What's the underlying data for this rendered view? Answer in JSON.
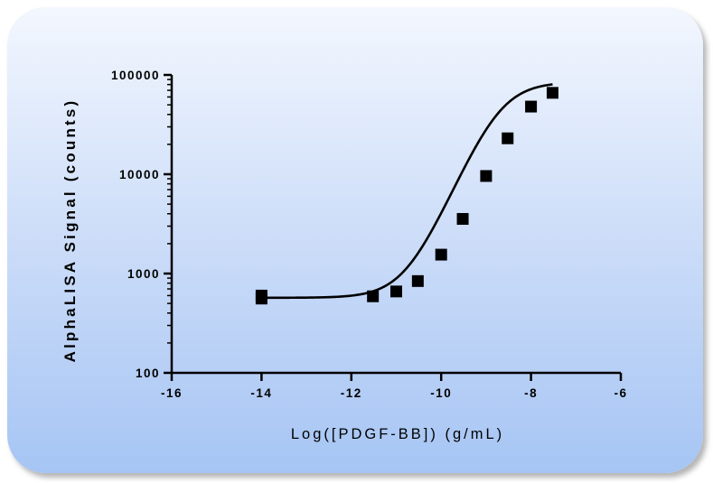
{
  "chart_data": {
    "type": "scatter",
    "title": "",
    "xlabel": "Log([PDGF-BB]) (g/mL)",
    "ylabel": "AlphaLISA Signal (counts)",
    "xlim": [
      -16,
      -6
    ],
    "ylim": [
      100,
      100000
    ],
    "yscale": "log",
    "grid": false,
    "x_ticks": [
      -16,
      -14,
      -12,
      -10,
      -8,
      -6
    ],
    "x_tick_labels": [
      "-16",
      "-14",
      "-12",
      "-10",
      "-8",
      "-6"
    ],
    "y_ticks": [
      100,
      1000,
      10000,
      100000
    ],
    "y_tick_labels": [
      "100",
      "1000",
      "10000",
      "100000"
    ],
    "series": [
      {
        "marker": "square",
        "color": "#000000",
        "x": [
          -14,
          -14,
          -11.52,
          -11,
          -10.52,
          -10,
          -9.52,
          -9,
          -8.52,
          -8,
          -7.52
        ],
        "y": [
          600,
          560,
          590,
          660,
          840,
          1550,
          3550,
          9600,
          23000,
          48000,
          66000
        ]
      }
    ],
    "fit_curve": {
      "type": "4PL",
      "bottom": 570,
      "top": 85000,
      "log_ec50": -8.7,
      "hill_slope": 1.05
    }
  }
}
